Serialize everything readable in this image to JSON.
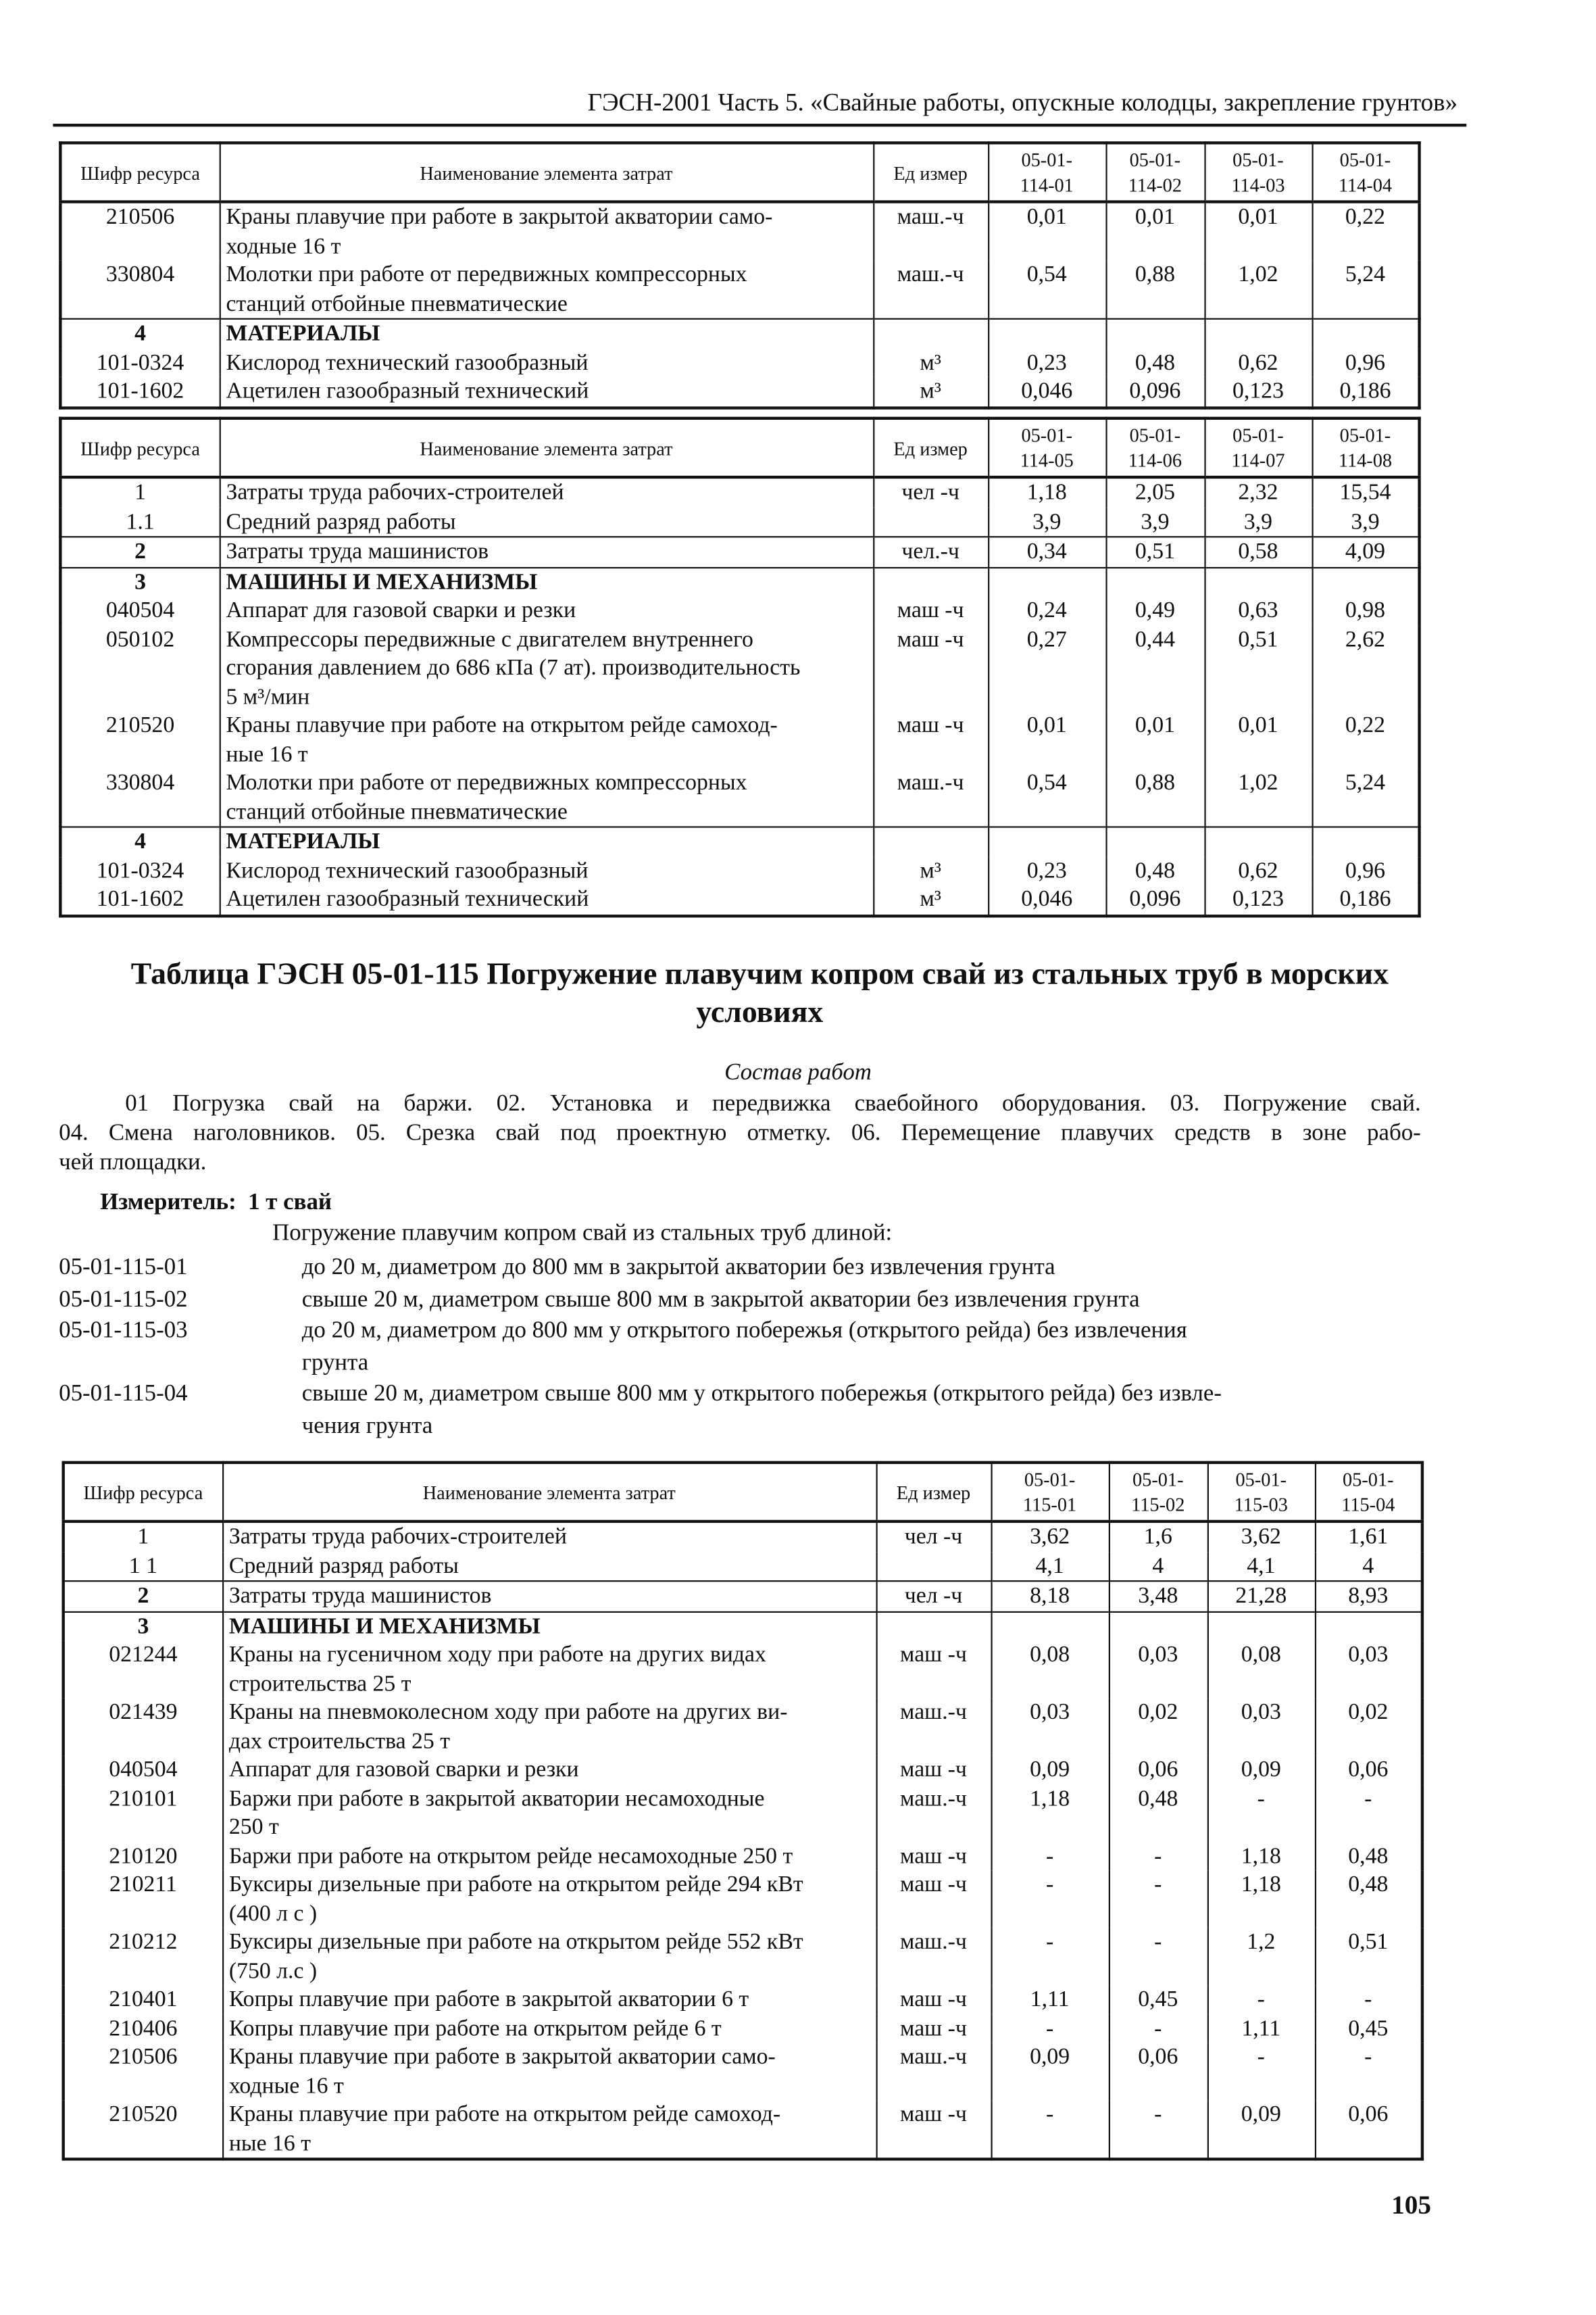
{
  "running_header": "ГЭСН-2001 Часть 5. «Свайные работы, опускные колодцы, закрепление грунтов»",
  "tables": [
    {
      "headers": [
        "Шифр ресурса",
        "Наименование элемента затрат",
        "Ед измер",
        "05-01-\n114-01",
        "05-01-\n114-02",
        "05-01-\n114-03",
        "05-01-\n114-04"
      ],
      "rows": [
        {
          "code": "210506",
          "name": "Краны плавучие при работе в закрытой акватории само-\nходные 16 т",
          "unit": "маш.-ч",
          "values": [
            "0,01",
            "0,01",
            "0,01",
            "0,22"
          ]
        },
        {
          "code": "330804",
          "name": "Молотки при работе от передвижных компрессорных\nстанций отбойные пневматические",
          "unit": "маш.-ч",
          "values": [
            "0,54",
            "0,88",
            "1,02",
            "5,24"
          ]
        },
        {
          "code": "4",
          "name": "МАТЕРИАЛЫ",
          "unit": "",
          "values": [
            "",
            "",
            "",
            ""
          ],
          "bold": true,
          "new_section": true
        },
        {
          "code": "101-0324",
          "name": "Кислород технический газообразный",
          "unit": "м³",
          "values": [
            "0,23",
            "0,48",
            "0,62",
            "0,96"
          ]
        },
        {
          "code": "101-1602",
          "name": "Ацетилен газообразный технический",
          "unit": "м³",
          "values": [
            "0,046",
            "0,096",
            "0,123",
            "0,186"
          ]
        }
      ]
    },
    {
      "headers": [
        "Шифр ресурса",
        "Наименование элемента затрат",
        "Ед измер",
        "05-01-\n114-05",
        "05-01-\n114-06",
        "05-01-\n114-07",
        "05-01-\n114-08"
      ],
      "rows": [
        {
          "code": "1",
          "name": "Затраты труда рабочих-строителей",
          "unit": "чел -ч",
          "values": [
            "1,18",
            "2,05",
            "2,32",
            "15,54"
          ]
        },
        {
          "code": "1.1",
          "name": "Средний разряд работы",
          "unit": "",
          "values": [
            "3,9",
            "3,9",
            "3,9",
            "3,9"
          ]
        },
        {
          "code": "2",
          "name": "Затраты труда машинистов",
          "unit": "чел.-ч",
          "values": [
            "0,34",
            "0,51",
            "0,58",
            "4,09"
          ],
          "new_section": true,
          "bold_code": true
        },
        {
          "code": "3",
          "name": "МАШИНЫ И МЕХАНИЗМЫ",
          "unit": "",
          "values": [
            "",
            "",
            "",
            ""
          ],
          "bold": true,
          "new_section": true
        },
        {
          "code": "040504",
          "name": "Аппарат для газовой сварки и резки",
          "unit": "маш -ч",
          "values": [
            "0,24",
            "0,49",
            "0,63",
            "0,98"
          ]
        },
        {
          "code": "050102",
          "name": "Компрессоры передвижные с двигателем внутреннего\nсгорания давлением до 686 кПа (7 ат). производительность\n5 м³/мин",
          "unit": "маш -ч",
          "values": [
            "0,27",
            "0,44",
            "0,51",
            "2,62"
          ]
        },
        {
          "code": "210520",
          "name": "Краны плавучие при работе на открытом рейде самоход-\nные 16 т",
          "unit": "маш -ч",
          "values": [
            "0,01",
            "0,01",
            "0,01",
            "0,22"
          ]
        },
        {
          "code": "330804",
          "name": "Молотки при работе от передвижных компрессорных\nстанций отбойные пневматические",
          "unit": "маш.-ч",
          "values": [
            "0,54",
            "0,88",
            "1,02",
            "5,24"
          ]
        },
        {
          "code": "4",
          "name": "МАТЕРИАЛЫ",
          "unit": "",
          "values": [
            "",
            "",
            "",
            ""
          ],
          "bold": true,
          "new_section": true
        },
        {
          "code": "101-0324",
          "name": "Кислород технический газообразный",
          "unit": "м³",
          "values": [
            "0,23",
            "0,48",
            "0,62",
            "0,96"
          ]
        },
        {
          "code": "101-1602",
          "name": "Ацетилен газообразный технический",
          "unit": "м³",
          "values": [
            "0,046",
            "0,096",
            "0,123",
            "0,186"
          ]
        }
      ]
    },
    {
      "headers": [
        "Шифр ресурса",
        "Наименование элемента затрат",
        "Ед измер",
        "05-01-\n115-01",
        "05-01-\n115-02",
        "05-01-\n115-03",
        "05-01-\n115-04"
      ],
      "rows": [
        {
          "code": "1",
          "name": "Затраты труда рабочих-строителей",
          "unit": "чел -ч",
          "values": [
            "3,62",
            "1,6",
            "3,62",
            "1,61"
          ]
        },
        {
          "code": "1 1",
          "name": "Средний разряд работы",
          "unit": "",
          "values": [
            "4,1",
            "4",
            "4,1",
            "4"
          ]
        },
        {
          "code": "2",
          "name": "Затраты труда машинистов",
          "unit": "чел -ч",
          "values": [
            "8,18",
            "3,48",
            "21,28",
            "8,93"
          ],
          "new_section": true,
          "bold_code": true
        },
        {
          "code": "3",
          "name": "МАШИНЫ И МЕХАНИЗМЫ",
          "unit": "",
          "values": [
            "",
            "",
            "",
            ""
          ],
          "bold": true,
          "new_section": true
        },
        {
          "code": "021244",
          "name": "Краны на гусеничном ходу при работе на других видах\nстроительства 25 т",
          "unit": "маш -ч",
          "values": [
            "0,08",
            "0,03",
            "0,08",
            "0,03"
          ]
        },
        {
          "code": "021439",
          "name": "Краны на пневмоколесном ходу при работе на других ви-\nдах строительства 25 т",
          "unit": "маш.-ч",
          "values": [
            "0,03",
            "0,02",
            "0,03",
            "0,02"
          ]
        },
        {
          "code": "040504",
          "name": "Аппарат для газовой сварки и резки",
          "unit": "маш -ч",
          "values": [
            "0,09",
            "0,06",
            "0,09",
            "0,06"
          ]
        },
        {
          "code": "210101",
          "name": "Баржи при работе в закрытой акватории несамоходные\n250 т",
          "unit": "маш.-ч",
          "values": [
            "1,18",
            "0,48",
            "-",
            "-"
          ]
        },
        {
          "code": "210120",
          "name": "Баржи при работе на открытом рейде несамоходные 250 т",
          "unit": "маш -ч",
          "values": [
            "-",
            "-",
            "1,18",
            "0,48"
          ]
        },
        {
          "code": "210211",
          "name": "Буксиры дизельные при работе на открытом рейде 294 кВт\n(400 л с )",
          "unit": "маш -ч",
          "values": [
            "-",
            "-",
            "1,18",
            "0,48"
          ]
        },
        {
          "code": "210212",
          "name": "Буксиры дизельные при работе на открытом рейде 552 кВт\n(750 л.с )",
          "unit": "маш.-ч",
          "values": [
            "-",
            "-",
            "1,2",
            "0,51"
          ]
        },
        {
          "code": "210401",
          "name": "Копры плавучие при работе в закрытой акватории 6 т",
          "unit": "маш -ч",
          "values": [
            "1,11",
            "0,45",
            "-",
            "-"
          ]
        },
        {
          "code": "210406",
          "name": "Копры плавучие при работе на открытом рейде 6 т",
          "unit": "маш -ч",
          "values": [
            "-",
            "-",
            "1,11",
            "0,45"
          ]
        },
        {
          "code": "210506",
          "name": "Краны плавучие при работе в закрытой акватории само-\nходные 16 т",
          "unit": "маш.-ч",
          "values": [
            "0,09",
            "0,06",
            "-",
            "-"
          ]
        },
        {
          "code": "210520",
          "name": "Краны плавучие при работе на открытом рейде самоход-\nные 16 т",
          "unit": "маш -ч",
          "values": [
            "-",
            "-",
            "0,09",
            "0,06"
          ]
        }
      ]
    }
  ],
  "section": {
    "title": "Таблица ГЭСН 05-01-115 Погружение плавучим копром свай из стальных труб в морских\nусловиях",
    "composition_heading": "Состав работ",
    "composition_lines": [
      "01 Погрузка свай на баржи. 02. Установка и передвижка сваебойного оборудования. 03. Погружение свай.",
      "04. Смена наголовников. 05. Срезка свай под проектную отметку. 06. Перемещение плавучих средств в зоне рабо-",
      "чей площадки."
    ],
    "measure_label": "Измеритель:",
    "measure_value": "1 т свай",
    "intro": "Погружение плавучим копром свай из стальных труб длиной:",
    "items": [
      {
        "code": "05-01-115-01",
        "text": "до 20 м, диаметром до 800 мм в закрытой акватории без извлечения грунта"
      },
      {
        "code": "05-01-115-02",
        "text": "свыше 20 м, диаметром свыше 800 мм в закрытой акватории без извлечения грунта"
      },
      {
        "code": "05-01-115-03",
        "text": "до 20 м, диаметром до 800 мм у открытого побережья (открытого рейда) без извлечения\nгрунта"
      },
      {
        "code": "05-01-115-04",
        "text": "свыше 20 м, диаметром свыше 800 мм у открытого побережья (открытого рейда) без извле-\nчения грунта"
      }
    ]
  },
  "page_number": "105"
}
